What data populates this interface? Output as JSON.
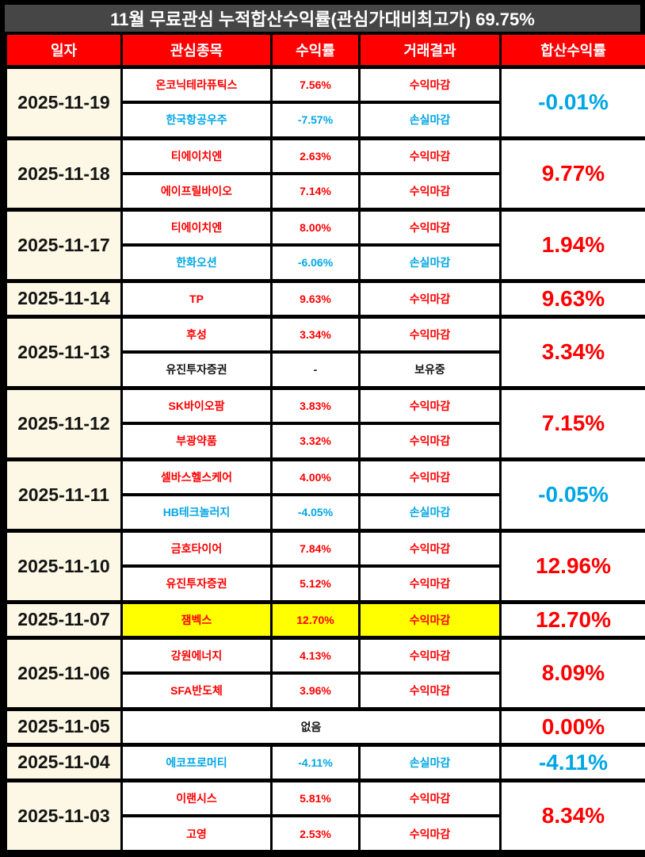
{
  "colors": {
    "profit": "#ff0000",
    "loss": "#00a6e6",
    "header_bg": "#ff0000",
    "title_bg": "#464646",
    "date_bg": "#fcf8e5",
    "highlight": "#ffff00",
    "border": "#000000"
  },
  "chart_data": {
    "type": "table",
    "title": "11월 무료관심 누적합산수익률(관심가대비최고가) 69.75%",
    "columns": [
      "일자",
      "관심종목",
      "수익률",
      "거래결과",
      "합산수익률"
    ],
    "rows": [
      {
        "date": "2025-11-19",
        "stocks": [
          {
            "name": "온코닉테라퓨틱스",
            "return": "7.56%",
            "result": "수익마감",
            "tone": "profit"
          },
          {
            "name": "한국항공우주",
            "return": "-7.57%",
            "result": "손실마감",
            "tone": "loss"
          }
        ],
        "total": "-0.01%",
        "total_tone": "loss"
      },
      {
        "date": "2025-11-18",
        "stocks": [
          {
            "name": "티에이치엔",
            "return": "2.63%",
            "result": "수익마감",
            "tone": "profit"
          },
          {
            "name": "에이프릴바이오",
            "return": "7.14%",
            "result": "수익마감",
            "tone": "profit"
          }
        ],
        "total": "9.77%",
        "total_tone": "profit"
      },
      {
        "date": "2025-11-17",
        "stocks": [
          {
            "name": "티에이치엔",
            "return": "8.00%",
            "result": "수익마감",
            "tone": "profit"
          },
          {
            "name": "한화오션",
            "return": "-6.06%",
            "result": "손실마감",
            "tone": "loss"
          }
        ],
        "total": "1.94%",
        "total_tone": "profit"
      },
      {
        "date": "2025-11-14",
        "stocks": [
          {
            "name": "TP",
            "return": "9.63%",
            "result": "수익마감",
            "tone": "profit"
          }
        ],
        "total": "9.63%",
        "total_tone": "profit"
      },
      {
        "date": "2025-11-13",
        "stocks": [
          {
            "name": "후성",
            "return": "3.34%",
            "result": "수익마감",
            "tone": "profit"
          },
          {
            "name": "유진투자증권",
            "return": "-",
            "result": "보유중",
            "tone": "neutral"
          }
        ],
        "total": "3.34%",
        "total_tone": "profit"
      },
      {
        "date": "2025-11-12",
        "stocks": [
          {
            "name": "SK바이오팜",
            "return": "3.83%",
            "result": "수익마감",
            "tone": "profit"
          },
          {
            "name": "부광약품",
            "return": "3.32%",
            "result": "수익마감",
            "tone": "profit"
          }
        ],
        "total": "7.15%",
        "total_tone": "profit"
      },
      {
        "date": "2025-11-11",
        "stocks": [
          {
            "name": "셀바스헬스케어",
            "return": "4.00%",
            "result": "수익마감",
            "tone": "profit"
          },
          {
            "name": "HB테크놀러지",
            "return": "-4.05%",
            "result": "손실마감",
            "tone": "loss"
          }
        ],
        "total": "-0.05%",
        "total_tone": "loss"
      },
      {
        "date": "2025-11-10",
        "stocks": [
          {
            "name": "금호타이어",
            "return": "7.84%",
            "result": "수익마감",
            "tone": "profit"
          },
          {
            "name": "유진투자증권",
            "return": "5.12%",
            "result": "수익마감",
            "tone": "profit"
          }
        ],
        "total": "12.96%",
        "total_tone": "profit"
      },
      {
        "date": "2025-11-07",
        "stocks": [
          {
            "name": "잼벡스",
            "return": "12.70%",
            "result": "수익마감",
            "tone": "profit",
            "highlight": true
          }
        ],
        "total": "12.70%",
        "total_tone": "profit"
      },
      {
        "date": "2025-11-06",
        "stocks": [
          {
            "name": "강원에너지",
            "return": "4.13%",
            "result": "수익마감",
            "tone": "profit"
          },
          {
            "name": "SFA반도체",
            "return": "3.96%",
            "result": "수익마감",
            "tone": "profit"
          }
        ],
        "total": "8.09%",
        "total_tone": "profit"
      },
      {
        "date": "2025-11-05",
        "stocks": [
          {
            "name": "없음",
            "merged": true,
            "tone": "neutral"
          }
        ],
        "total": "0.00%",
        "total_tone": "profit"
      },
      {
        "date": "2025-11-04",
        "stocks": [
          {
            "name": "에코프로머티",
            "return": "-4.11%",
            "result": "손실마감",
            "tone": "loss"
          }
        ],
        "total": "-4.11%",
        "total_tone": "loss"
      },
      {
        "date": "2025-11-03",
        "stocks": [
          {
            "name": "이랜시스",
            "return": "5.81%",
            "result": "수익마감",
            "tone": "profit"
          },
          {
            "name": "고영",
            "return": "2.53%",
            "result": "수익마감",
            "tone": "profit"
          }
        ],
        "total": "8.34%",
        "total_tone": "profit"
      }
    ]
  }
}
